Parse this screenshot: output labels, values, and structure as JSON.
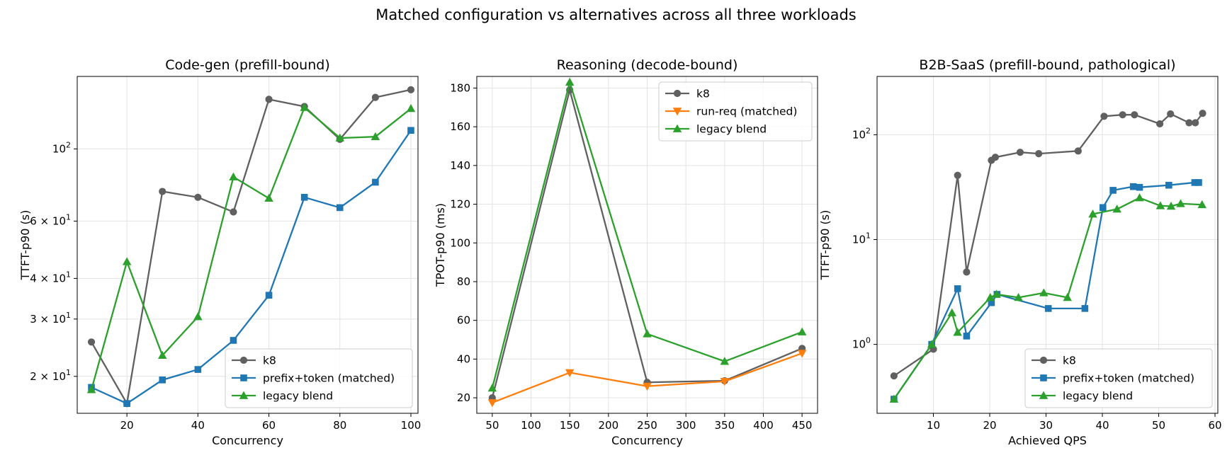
{
  "suptitle": "Matched configuration vs alternatives across all three workloads",
  "colors": {
    "k8": "#606060",
    "blue": "#1f77b4",
    "orange": "#ff7f0e",
    "green": "#2ca02c"
  },
  "chart_data": [
    {
      "type": "line",
      "title": "Code-gen (prefill-bound)",
      "xlabel": "Concurrency",
      "ylabel": "TTFT-p90 (s)",
      "yscale": "log",
      "xlim": [
        6,
        102
      ],
      "ylim": [
        15.4,
        167
      ],
      "xticks": [
        "20",
        "40",
        "60",
        "80",
        "100"
      ],
      "xtick_values": [
        20,
        40,
        60,
        80,
        100
      ],
      "yticks": [
        "2 × 10^1",
        "3 × 10^1",
        "4 × 10^1",
        "6 × 10^1",
        "10^2"
      ],
      "ytick_values": [
        20,
        30,
        40,
        60,
        100
      ],
      "legend_loc": "lower-right",
      "x": [
        10,
        20,
        30,
        40,
        50,
        60,
        70,
        80,
        90,
        100
      ],
      "series": [
        {
          "name": "k8",
          "color": "#606060",
          "marker": "circle",
          "values": [
            25.5,
            16.5,
            74,
            71,
            64,
            142,
            135,
            107,
            144,
            152
          ]
        },
        {
          "name": "prefix+token (matched)",
          "color": "#1f77b4",
          "marker": "square",
          "values": [
            18.5,
            16.5,
            19.5,
            21,
            25.8,
            35.5,
            71,
            66,
            79,
            114
          ]
        },
        {
          "name": "legacy blend",
          "color": "#2ca02c",
          "marker": "triangle-up",
          "values": [
            18.2,
            45,
            23.2,
            30.5,
            82,
            70.5,
            134,
            108,
            109,
            133
          ]
        }
      ]
    },
    {
      "type": "line",
      "title": "Reasoning (decode-bound)",
      "xlabel": "Concurrency",
      "ylabel": "TPOT-p90 (ms)",
      "yscale": "linear",
      "xlim": [
        30,
        470
      ],
      "ylim": [
        12,
        186
      ],
      "xticks": [
        "50",
        "100",
        "150",
        "200",
        "250",
        "300",
        "350",
        "400",
        "450"
      ],
      "xtick_values": [
        50,
        100,
        150,
        200,
        250,
        300,
        350,
        400,
        450
      ],
      "yticks": [
        "20",
        "40",
        "60",
        "80",
        "100",
        "120",
        "140",
        "160",
        "180"
      ],
      "ytick_values": [
        20,
        40,
        60,
        80,
        100,
        120,
        140,
        160,
        180
      ],
      "legend_loc": "upper-right",
      "x": [
        50,
        150,
        250,
        350,
        450
      ],
      "series": [
        {
          "name": "k8",
          "color": "#606060",
          "marker": "circle",
          "values": [
            20,
            179,
            28,
            28.8,
            45.5
          ]
        },
        {
          "name": "run-req (matched)",
          "color": "#ff7f0e",
          "marker": "triangle-down",
          "values": [
            17.5,
            33,
            26,
            28.5,
            43
          ]
        },
        {
          "name": "legacy blend",
          "color": "#2ca02c",
          "marker": "triangle-up",
          "values": [
            25,
            183,
            53,
            38.8,
            54
          ]
        }
      ]
    },
    {
      "type": "line",
      "title": "B2B-SaaS (prefill-bound, pathological)",
      "xlabel": "Achieved QPS",
      "ylabel": "TTFT-p90 (s)",
      "yscale": "log",
      "xlim": [
        0,
        60.5
      ],
      "ylim": [
        0.22,
        360
      ],
      "xticks": [
        "10",
        "20",
        "30",
        "40",
        "50",
        "60"
      ],
      "xtick_values": [
        10,
        20,
        30,
        40,
        50,
        60
      ],
      "yticks": [
        "10^0",
        "10^1",
        "10^2"
      ],
      "ytick_values": [
        1,
        10,
        100
      ],
      "legend_loc": "lower-right",
      "series": [
        {
          "name": "k8",
          "color": "#606060",
          "marker": "circle",
          "x": [
            3,
            10,
            14.3,
            15.9,
            20.3,
            21,
            25.4,
            28.7,
            35.7,
            40.3,
            43.6,
            45.7,
            50.2,
            52.1,
            55.4,
            56.5,
            57.8
          ],
          "values": [
            0.5,
            0.9,
            41,
            4.9,
            57,
            61,
            68,
            66,
            70,
            150,
            155,
            155,
            127,
            158,
            130,
            130,
            160
          ]
        },
        {
          "name": "prefix+token (matched)",
          "color": "#1f77b4",
          "marker": "square",
          "x": [
            3,
            9.7,
            14.3,
            15.9,
            20.3,
            21.3,
            30.4,
            36.9,
            40.1,
            41.9,
            45.5,
            46.6,
            51.8,
            56.4,
            57.1
          ],
          "values": [
            0.3,
            1.0,
            3.4,
            1.2,
            2.5,
            3.0,
            2.2,
            2.2,
            20.2,
            29.5,
            32,
            31.5,
            33,
            35,
            35
          ]
        },
        {
          "name": "legacy blend",
          "color": "#2ca02c",
          "marker": "triangle-up",
          "x": [
            3,
            9.7,
            13.3,
            14.3,
            20.1,
            21.2,
            25.1,
            29.6,
            33.8,
            38.3,
            42.6,
            46.6,
            50.3,
            52.2,
            53.9,
            57.7
          ],
          "values": [
            0.3,
            1.0,
            2.0,
            1.3,
            2.8,
            3.0,
            2.8,
            3.1,
            2.8,
            17.5,
            19.5,
            25,
            21,
            20.8,
            22,
            21.5
          ]
        }
      ]
    }
  ]
}
